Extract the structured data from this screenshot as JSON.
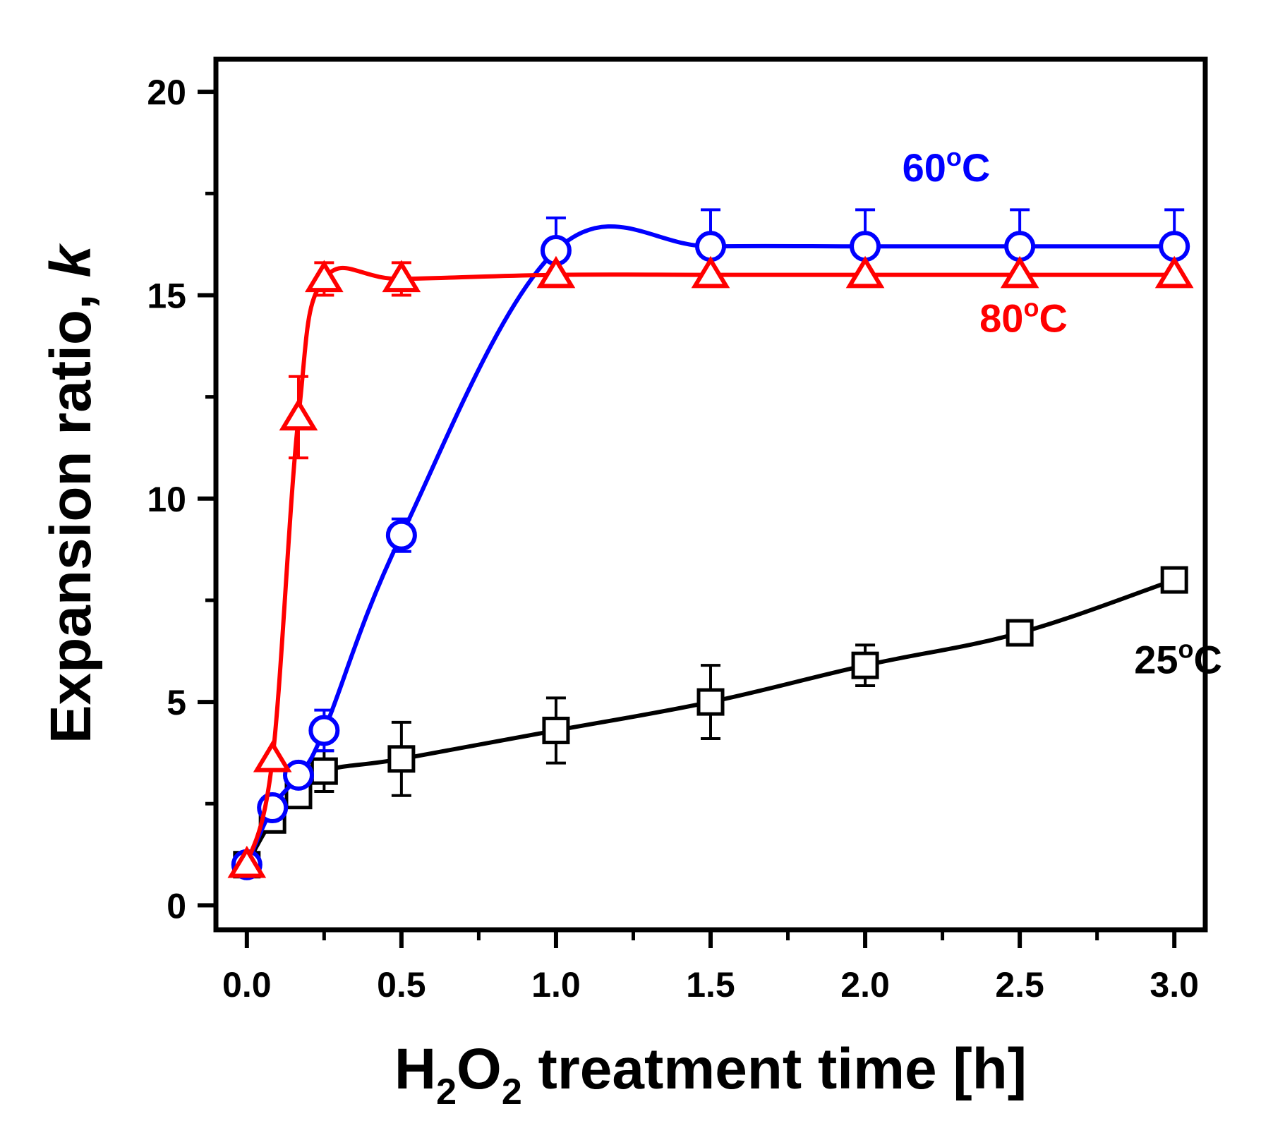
{
  "chart_data": {
    "type": "line",
    "title": "",
    "xlabel": {
      "text": "H2O2 treatment time [h]",
      "parts": [
        "H",
        "2",
        "O",
        "2",
        " treatment time [h]"
      ]
    },
    "ylabel": {
      "prefix": "Expansion ratio, ",
      "italic": "k"
    },
    "xlim": [
      -0.1,
      3.1
    ],
    "ylim": [
      -0.6,
      20.8
    ],
    "xticks": [
      0.0,
      0.5,
      1.0,
      1.5,
      2.0,
      2.5,
      3.0
    ],
    "xtick_labels": [
      "0.0",
      "0.5",
      "1.0",
      "1.5",
      "2.0",
      "2.5",
      "3.0"
    ],
    "yticks": [
      0,
      5,
      10,
      15,
      20
    ],
    "ytick_labels": [
      "0",
      "5",
      "10",
      "15",
      "20"
    ],
    "grid": false,
    "series": [
      {
        "name": "25°C",
        "label_parts": [
          "25",
          "o",
          "C"
        ],
        "color": "#000000",
        "marker": "square",
        "x": [
          0,
          0.083,
          0.167,
          0.25,
          0.5,
          1.0,
          1.5,
          2.0,
          2.5,
          3.0
        ],
        "y": [
          1.0,
          2.1,
          2.7,
          3.3,
          3.6,
          4.3,
          5.0,
          5.9,
          6.7,
          8.0
        ],
        "err": [
          0,
          0,
          0,
          0.5,
          0.9,
          0.8,
          0.9,
          0.5,
          0,
          0
        ],
        "label_anchor": [
          2.87,
          5.7
        ]
      },
      {
        "name": "60°C",
        "label_parts": [
          "60",
          "o",
          "C"
        ],
        "color": "#0000ff",
        "marker": "circle",
        "x": [
          0,
          0.083,
          0.167,
          0.25,
          0.5,
          1.0,
          1.5,
          2.0,
          2.5,
          3.0
        ],
        "y": [
          1.0,
          2.4,
          3.2,
          4.3,
          9.1,
          16.1,
          16.2,
          16.2,
          16.2,
          16.2
        ],
        "err": [
          0,
          0,
          0,
          0.5,
          0.4,
          0.8,
          0.9,
          0.9,
          0.9,
          0.9
        ],
        "label_anchor": [
          2.12,
          17.8
        ]
      },
      {
        "name": "80°C",
        "label_parts": [
          "80",
          "o",
          "C"
        ],
        "color": "#ff0000",
        "marker": "triangle",
        "x": [
          0,
          0.083,
          0.167,
          0.25,
          0.5,
          1.0,
          1.5,
          2.0,
          2.5,
          3.0
        ],
        "y": [
          1.0,
          3.6,
          12.0,
          15.4,
          15.4,
          15.5,
          15.5,
          15.5,
          15.5,
          15.5
        ],
        "err": [
          0,
          0,
          1.0,
          0.4,
          0.4,
          0,
          0,
          0,
          0,
          0
        ],
        "label_anchor": [
          2.37,
          14.1
        ]
      }
    ]
  }
}
